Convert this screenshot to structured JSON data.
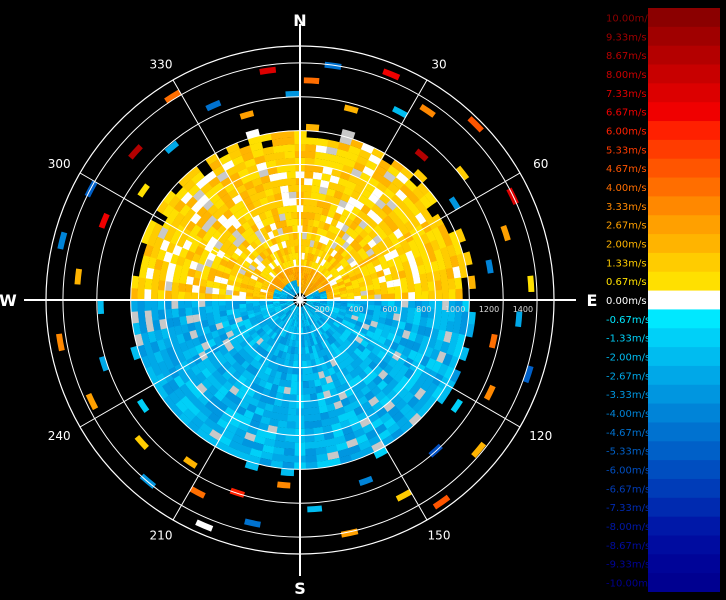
{
  "chart_data": {
    "type": "heatmap",
    "projection": "polar",
    "cardinals": [
      {
        "label": "N",
        "bearing": 0
      },
      {
        "label": "E",
        "bearing": 90
      },
      {
        "label": "S",
        "bearing": 180
      },
      {
        "label": "W",
        "bearing": 270
      }
    ],
    "bearing_labels": [
      {
        "label": "30",
        "bearing": 30
      },
      {
        "label": "60",
        "bearing": 60
      },
      {
        "label": "120",
        "bearing": 120
      },
      {
        "label": "150",
        "bearing": 150
      },
      {
        "label": "210",
        "bearing": 210
      },
      {
        "label": "240",
        "bearing": 240
      },
      {
        "label": "300",
        "bearing": 300
      },
      {
        "label": "330",
        "bearing": 330
      }
    ],
    "range_max": 1500,
    "range_rings": [
      200,
      400,
      600,
      800,
      1000,
      1200,
      1400
    ],
    "range_labels": [
      "200",
      "400",
      "600",
      "800",
      "1000",
      "1200",
      "1400"
    ],
    "spoke_interval_deg": 30,
    "legend": {
      "labels": [
        "10.00m/s",
        "9.33m/s",
        "8.67m/s",
        "8.00m/s",
        "7.33m/s",
        "6.67m/s",
        "6.00m/s",
        "5.33m/s",
        "4.67m/s",
        "4.00m/s",
        "3.33m/s",
        "2.67m/s",
        "2.00m/s",
        "1.33m/s",
        "0.67m/s",
        "0.00m/s",
        "-0.67m/s",
        "-1.33m/s",
        "-2.00m/s",
        "-2.67m/s",
        "-3.33m/s",
        "-4.00m/s",
        "-4.67m/s",
        "-5.33m/s",
        "-6.00m/s",
        "-6.67m/s",
        "-7.33m/s",
        "-8.00m/s",
        "-8.67m/s",
        "-9.33m/s",
        "-10.00m/s"
      ],
      "colors": [
        "#8b0000",
        "#a00000",
        "#b40000",
        "#c80000",
        "#dc0000",
        "#f00000",
        "#ff2000",
        "#ff3c00",
        "#ff5500",
        "#ff6e00",
        "#ff8800",
        "#ffa000",
        "#ffb400",
        "#ffcc00",
        "#ffe000",
        "#ffffff",
        "#00e8ff",
        "#00d0f8",
        "#00bcf0",
        "#00a8e8",
        "#0096e0",
        "#0084d8",
        "#0072d0",
        "#0060c8",
        "#004ec0",
        "#003cb8",
        "#002ab0",
        "#0018a8",
        "#000ca0",
        "#000498",
        "#000090"
      ]
    },
    "value_range": [
      -10,
      10
    ],
    "fields": {
      "inner_edge_range": 40,
      "approach": {
        "mean": 1.0,
        "color_index": 14,
        "bearing_from": -60,
        "bearing_to": 80,
        "range_min": 480,
        "range_max": 1020
      },
      "recede": {
        "mean": -2.5,
        "color_index": 19,
        "bearing_from": 90,
        "bearing_to": 270,
        "range_min": 40,
        "range_max": 1020
      },
      "no_data_color": "#c8c8c8"
    },
    "outer_echoes": [
      {
        "bearing": 3,
        "range": 1280,
        "color_index": 9
      },
      {
        "bearing": 8,
        "range": 1380,
        "color_index": 22
      },
      {
        "bearing": 15,
        "range": 1150,
        "color_index": 12
      },
      {
        "bearing": 22,
        "range": 1420,
        "color_index": 5
      },
      {
        "bearing": 28,
        "range": 1240,
        "color_index": 18
      },
      {
        "bearing": 34,
        "range": 1330,
        "color_index": 10
      },
      {
        "bearing": 40,
        "range": 1100,
        "color_index": 2
      },
      {
        "bearing": 45,
        "range": 1450,
        "color_index": 8
      },
      {
        "bearing": 52,
        "range": 1200,
        "color_index": 13
      },
      {
        "bearing": 58,
        "range": 1060,
        "color_index": 20
      },
      {
        "bearing": 64,
        "range": 1380,
        "color_index": 4
      },
      {
        "bearing": 72,
        "range": 1260,
        "color_index": 11
      },
      {
        "bearing": 80,
        "range": 1120,
        "color_index": 21
      },
      {
        "bearing": 86,
        "range": 1350,
        "color_index": 14
      },
      {
        "bearing": 95,
        "range": 1280,
        "color_index": 19
      },
      {
        "bearing": 102,
        "range": 1150,
        "color_index": 9
      },
      {
        "bearing": 108,
        "range": 1400,
        "color_index": 23
      },
      {
        "bearing": 116,
        "range": 1230,
        "color_index": 10
      },
      {
        "bearing": 124,
        "range": 1100,
        "color_index": 17
      },
      {
        "bearing": 130,
        "range": 1360,
        "color_index": 12
      },
      {
        "bearing": 138,
        "range": 1180,
        "color_index": 24
      },
      {
        "bearing": 145,
        "range": 1440,
        "color_index": 8
      },
      {
        "bearing": 152,
        "range": 1290,
        "color_index": 13
      },
      {
        "bearing": 160,
        "range": 1120,
        "color_index": 21
      },
      {
        "bearing": 168,
        "range": 1390,
        "color_index": 11
      },
      {
        "bearing": 176,
        "range": 1220,
        "color_index": 18
      },
      {
        "bearing": 185,
        "range": 1080,
        "color_index": 10
      },
      {
        "bearing": 192,
        "range": 1330,
        "color_index": 22
      },
      {
        "bearing": 198,
        "range": 1180,
        "color_index": 6
      },
      {
        "bearing": 203,
        "range": 1430,
        "color_index": 15
      },
      {
        "bearing": 208,
        "range": 1270,
        "color_index": 9
      },
      {
        "bearing": 214,
        "range": 1140,
        "color_index": 12
      },
      {
        "bearing": 220,
        "range": 1380,
        "color_index": 20
      },
      {
        "bearing": 228,
        "range": 1240,
        "color_index": 13
      },
      {
        "bearing": 236,
        "range": 1100,
        "color_index": 17
      },
      {
        "bearing": 244,
        "range": 1350,
        "color_index": 11
      },
      {
        "bearing": 252,
        "range": 1200,
        "color_index": 19
      },
      {
        "bearing": 260,
        "range": 1420,
        "color_index": 10
      },
      {
        "bearing": 268,
        "range": 1160,
        "color_index": 18
      },
      {
        "bearing": 276,
        "range": 1300,
        "color_index": 12
      },
      {
        "bearing": 284,
        "range": 1430,
        "color_index": 21
      },
      {
        "bearing": 292,
        "range": 1230,
        "color_index": 5
      },
      {
        "bearing": 298,
        "range": 1380,
        "color_index": 23
      },
      {
        "bearing": 305,
        "range": 1110,
        "color_index": 14
      },
      {
        "bearing": 312,
        "range": 1290,
        "color_index": 2
      },
      {
        "bearing": 320,
        "range": 1160,
        "color_index": 19
      },
      {
        "bearing": 328,
        "range": 1400,
        "color_index": 9
      },
      {
        "bearing": 336,
        "range": 1240,
        "color_index": 22
      },
      {
        "bearing": 344,
        "range": 1120,
        "color_index": 11
      },
      {
        "bearing": 352,
        "range": 1350,
        "color_index": 4
      },
      {
        "bearing": 358,
        "range": 1200,
        "color_index": 20
      }
    ]
  }
}
